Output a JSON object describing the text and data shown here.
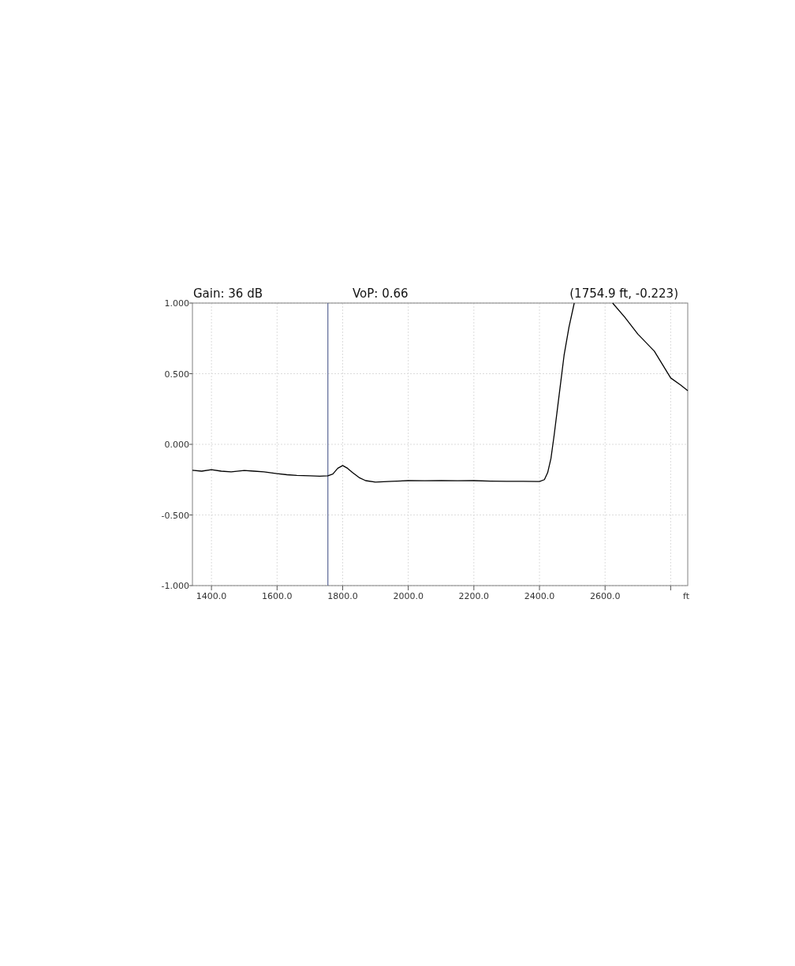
{
  "chart_data": {
    "type": "line",
    "annotations": [
      "Gain: 36 dB",
      "VoP: 0.66",
      "(1754.9 ft, -0.223)"
    ],
    "xlabel": "ft",
    "x": [
      1342,
      1370,
      1400,
      1430,
      1460,
      1500,
      1530,
      1560,
      1600,
      1630,
      1660,
      1700,
      1730,
      1754.9,
      1770,
      1785,
      1800,
      1815,
      1830,
      1850,
      1870,
      1900,
      1950,
      2000,
      2050,
      2100,
      2150,
      2200,
      2250,
      2300,
      2350,
      2400,
      2415,
      2425,
      2435,
      2445,
      2460,
      2475,
      2490,
      2506,
      2560,
      2623,
      2660,
      2700,
      2750,
      2800,
      2830,
      2852
    ],
    "series": [
      {
        "color": "#000000",
        "values": [
          -0.184,
          -0.19,
          -0.18,
          -0.19,
          -0.195,
          -0.185,
          -0.19,
          -0.195,
          -0.207,
          -0.215,
          -0.22,
          -0.223,
          -0.225,
          -0.223,
          -0.21,
          -0.17,
          -0.15,
          -0.17,
          -0.2,
          -0.235,
          -0.257,
          -0.268,
          -0.262,
          -0.257,
          -0.258,
          -0.256,
          -0.258,
          -0.257,
          -0.26,
          -0.262,
          -0.262,
          -0.263,
          -0.25,
          -0.2,
          -0.1,
          0.07,
          0.35,
          0.63,
          0.83,
          1.0,
          null,
          1.0,
          0.9,
          0.78,
          0.66,
          0.47,
          0.42,
          0.38
        ]
      }
    ],
    "xlim": [
      1342,
      2852
    ],
    "ylim": [
      -1,
      1
    ],
    "xticks": [
      {
        "value": 1400,
        "label": "1400.0"
      },
      {
        "value": 1600,
        "label": "1600.0"
      },
      {
        "value": 1800,
        "label": "1800.0"
      },
      {
        "value": 2000,
        "label": "2000.0"
      },
      {
        "value": 2200,
        "label": "2200.0"
      },
      {
        "value": 2400,
        "label": "2400.0"
      },
      {
        "value": 2600,
        "label": "2600.0"
      },
      {
        "value": 2800,
        "label": null
      }
    ],
    "yticks": [
      {
        "value": 1,
        "label": "1.000"
      },
      {
        "value": 0.5,
        "label": "0.500"
      },
      {
        "value": 0,
        "label": "0.000"
      },
      {
        "value": -0.5,
        "label": "-0.500"
      },
      {
        "value": -1,
        "label": "-1.000"
      }
    ],
    "ref_lines": [
      {
        "axis": "x",
        "value": 1754.9,
        "color": "#5a6796"
      }
    ],
    "grid": true,
    "marker": "none",
    "line_style": "solid"
  }
}
